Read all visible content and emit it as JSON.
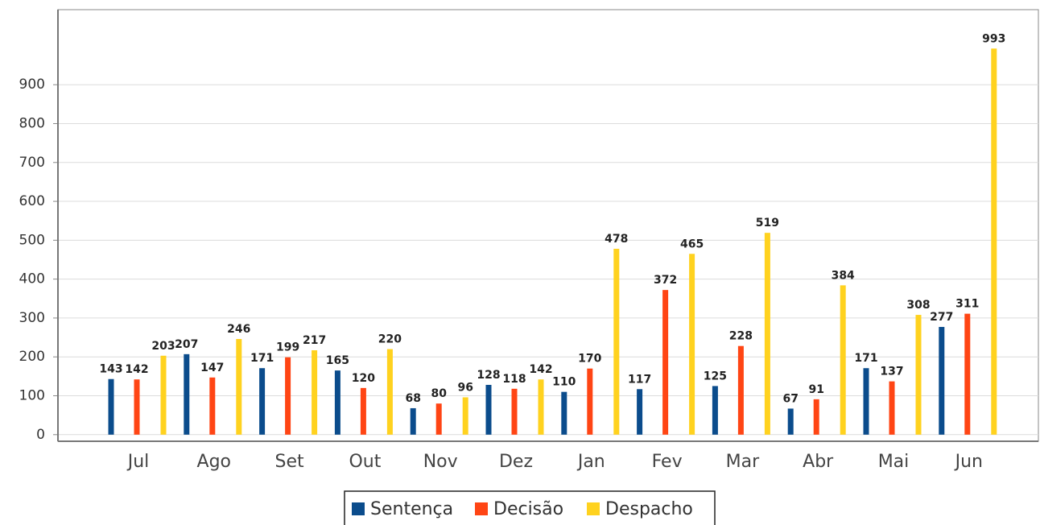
{
  "chart_data": {
    "type": "bar",
    "categories": [
      "Jul",
      "Ago",
      "Set",
      "Out",
      "Nov",
      "Dez",
      "Jan",
      "Fev",
      "Mar",
      "Abr",
      "Mai",
      "Jun"
    ],
    "series": [
      {
        "name": "Sentença",
        "color": "#0b4c8c",
        "values": [
          143,
          207,
          171,
          165,
          68,
          128,
          110,
          117,
          125,
          67,
          171,
          277
        ]
      },
      {
        "name": "Decisão",
        "color": "#ff4514",
        "values": [
          142,
          147,
          199,
          120,
          80,
          118,
          170,
          372,
          228,
          91,
          137,
          311
        ]
      },
      {
        "name": "Despacho",
        "color": "#ffd21f",
        "values": [
          203,
          246,
          217,
          220,
          96,
          142,
          478,
          465,
          519,
          384,
          308,
          993
        ]
      }
    ],
    "ylim": [
      -17,
      1093
    ],
    "yticks": [
      0,
      100,
      200,
      300,
      400,
      500,
      600,
      700,
      800,
      900
    ],
    "grid": true,
    "legend": "bottom"
  }
}
